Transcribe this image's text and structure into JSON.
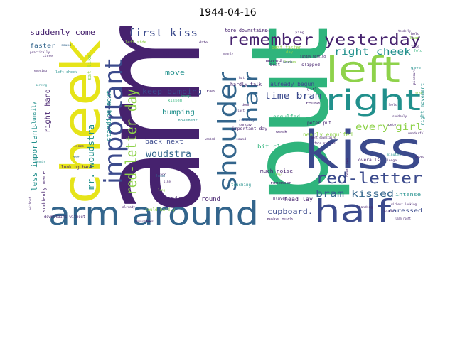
{
  "figure": {
    "title": "1944-04-16"
  },
  "palette": {
    "dark_purple": "#46226e",
    "indigo": "#3b4a8c",
    "blue": "#33658c",
    "teal": "#21908c",
    "green": "#2fb47c",
    "lime": "#8ed24a",
    "yellow": "#e6e419"
  },
  "words": [
    {
      "t": "arm",
      "c": "dark_purple"
    },
    {
      "t": "put",
      "c": "green"
    },
    {
      "t": "cheek",
      "c": "yellow"
    },
    {
      "t": "kiss",
      "c": "indigo"
    },
    {
      "t": "arm around",
      "c": "blue"
    },
    {
      "t": "half",
      "c": "indigo"
    },
    {
      "t": "left",
      "c": "lime"
    },
    {
      "t": "right",
      "c": "teal"
    },
    {
      "t": "important",
      "c": "indigo"
    },
    {
      "t": "shoulder",
      "c": "blue"
    },
    {
      "t": "remember yesterday",
      "c": "dark_purple"
    },
    {
      "t": "red-letter",
      "c": "indigo"
    },
    {
      "t": "red-letter day",
      "c": "lime"
    },
    {
      "t": "hair",
      "c": "blue"
    },
    {
      "t": "first kiss",
      "c": "indigo"
    },
    {
      "t": "right cheek",
      "c": "teal"
    },
    {
      "t": "bram kissed",
      "c": "blue"
    },
    {
      "t": "every girl",
      "c": "lime"
    },
    {
      "t": "time bram",
      "c": "indigo"
    },
    {
      "t": "woudstra",
      "c": "blue"
    },
    {
      "t": "mr. woudstra",
      "c": "teal"
    },
    {
      "t": "keep bumping",
      "c": "indigo"
    },
    {
      "t": "bumping",
      "c": "teal"
    },
    {
      "t": "standing next",
      "c": "teal"
    },
    {
      "t": "less important",
      "c": "teal"
    },
    {
      "t": "right hand",
      "c": "dark_purple"
    },
    {
      "t": "suddenly come",
      "c": "dark_purple"
    },
    {
      "t": "cupboard.",
      "c": "indigo"
    },
    {
      "t": "nightly round",
      "c": "dark_purple"
    },
    {
      "t": "back next",
      "c": "indigo"
    },
    {
      "t": "satisfied",
      "c": "dark_purple"
    },
    {
      "t": "move",
      "c": "teal"
    },
    {
      "t": "already begun",
      "c": "indigo"
    },
    {
      "t": "nearly engulfed",
      "c": "lime"
    },
    {
      "t": "engulfed",
      "c": "green"
    },
    {
      "t": "bit clumsily",
      "c": "green"
    },
    {
      "t": "hardly talk",
      "c": "dark_purple"
    },
    {
      "t": "head lay",
      "c": "dark_purple"
    },
    {
      "t": "caressed",
      "c": "indigo"
    },
    {
      "t": "faster",
      "c": "blue"
    },
    {
      "t": "clumsily",
      "c": "teal"
    },
    {
      "t": "suddenly made",
      "c": "dark_purple"
    },
    {
      "t": "sat like",
      "c": "lime"
    },
    {
      "t": "tore downstairs",
      "c": "dark_purple"
    },
    {
      "t": "much noise",
      "c": "dark_purple"
    },
    {
      "t": "beat faster",
      "c": "lime"
    },
    {
      "t": "important day",
      "c": "dark_purple"
    },
    {
      "t": "peter put",
      "c": "dark_purple"
    },
    {
      "t": "intense",
      "c": "teal"
    },
    {
      "t": "looking back",
      "c": "dark_purple"
    },
    {
      "t": "downstairs without",
      "c": "dark_purple"
    },
    {
      "t": "could hardly",
      "c": "lime"
    },
    {
      "t": "touching",
      "c": "teal"
    },
    {
      "t": "kissed",
      "c": "green"
    },
    {
      "t": "keep",
      "c": "green"
    },
    {
      "t": "beat",
      "c": "dark_purple"
    },
    {
      "t": "moved",
      "c": "dark_purple"
    },
    {
      "t": "slipped",
      "c": "dark_purple"
    },
    {
      "t": "right movement",
      "c": "teal"
    },
    {
      "t": "overalls",
      "c": "dark_purple"
    },
    {
      "t": "left cheek",
      "c": "teal"
    },
    {
      "t": "left side",
      "c": "lime"
    },
    {
      "t": "round",
      "c": "dark_purple"
    },
    {
      "t": "girl",
      "c": "dark_purple"
    },
    {
      "t": "ran",
      "c": "dark_purple"
    },
    {
      "t": "played",
      "c": "dark_purple"
    },
    {
      "t": "remember",
      "c": "dark_purple"
    },
    {
      "t": "make much",
      "c": "dark_purple"
    },
    {
      "t": "lean",
      "c": "lime"
    },
    {
      "t": "fold",
      "c": "green"
    },
    {
      "t": "sunday morning",
      "c": "dark_purple"
    },
    {
      "t": "movement",
      "c": "teal"
    },
    {
      "t": "saturday",
      "c": "indigo"
    },
    {
      "t": "bram",
      "c": "lime"
    },
    {
      "t": "gave",
      "c": "teal"
    },
    {
      "t": "day",
      "c": "lime"
    },
    {
      "t": "week",
      "c": "dark_purple"
    },
    {
      "t": "heads",
      "c": "indigo"
    },
    {
      "t": "head",
      "c": "blue"
    },
    {
      "t": "close",
      "c": "dark_purple"
    },
    {
      "t": "sound",
      "c": "blue"
    },
    {
      "t": "practically",
      "c": "dark_purple"
    },
    {
      "t": "evening",
      "c": "dark_purple"
    },
    {
      "t": "morning",
      "c": "teal"
    },
    {
      "t": "tennis",
      "c": "teal"
    },
    {
      "t": "since",
      "c": "dark_purple"
    },
    {
      "t": "bit",
      "c": "blue"
    },
    {
      "t": "hand",
      "c": "dark_purple"
    },
    {
      "t": "long",
      "c": "lime"
    },
    {
      "t": "without",
      "c": "dark_purple"
    },
    {
      "t": "already",
      "c": "dark_purple"
    },
    {
      "t": "shows",
      "c": "dark_purple"
    },
    {
      "t": "lying",
      "c": "dark_purple"
    },
    {
      "t": "pleasure",
      "c": "dark_purple"
    },
    {
      "t": "wonderful",
      "c": "dark_purple"
    },
    {
      "t": "suddenly",
      "c": "dark_purple"
    },
    {
      "t": "standing",
      "c": "dark_purple"
    },
    {
      "t": "without looking",
      "c": "dark_purple"
    },
    {
      "t": "lean right",
      "c": "dark_purple"
    },
    {
      "t": "feels",
      "c": "dark_purple"
    },
    {
      "t": "made",
      "c": "dark_purple"
    },
    {
      "t": "side",
      "c": "lime"
    },
    {
      "t": "hands",
      "c": "dark_purple"
    },
    {
      "t": "tore",
      "c": "dark_purple"
    },
    {
      "t": "date",
      "c": "dark_purple"
    },
    {
      "t": "nearly",
      "c": "dark_purple"
    },
    {
      "t": "last",
      "c": "dark_purple"
    },
    {
      "t": "peter",
      "c": "dark_purple"
    },
    {
      "t": "minutes",
      "c": "teal"
    },
    {
      "t": "face minutes",
      "c": "dark_purple"
    },
    {
      "t": "went downstairs",
      "c": "dark_purple"
    },
    {
      "t": "down",
      "c": "dark_purple"
    },
    {
      "t": "wanted",
      "c": "dark_purple"
    },
    {
      "t": "lay",
      "c": "lime"
    },
    {
      "t": "sunday",
      "c": "dark_purple"
    },
    {
      "t": "tenderly",
      "c": "dark_purple"
    },
    {
      "t": "head like",
      "c": "dark_purple"
    },
    {
      "t": "hat",
      "c": "dark_purple"
    },
    {
      "t": "lodge",
      "c": "dark_purple"
    },
    {
      "t": "hold",
      "c": "dark_purple"
    },
    {
      "t": "face",
      "c": "dark_purple"
    },
    {
      "t": "sound",
      "c": "dark_purple"
    },
    {
      "t": "like",
      "c": "dark_purple"
    },
    {
      "t": "tennis shoes",
      "c": "dark_purple"
    }
  ]
}
